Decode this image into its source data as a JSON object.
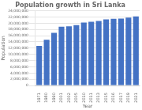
{
  "chart_data": {
    "type": "bar",
    "title": "Population growth in Sri Lanka",
    "xlabel": "Year",
    "ylabel": "Population",
    "categories": [
      "1971",
      "1980",
      "1990",
      "2001",
      "2002",
      "2005",
      "2010",
      "2011",
      "2013",
      "2015",
      "2016",
      "2017",
      "2019",
      "2021"
    ],
    "values": [
      12700000,
      14700000,
      16900000,
      18900000,
      19000000,
      19400000,
      20200000,
      20500000,
      20700000,
      21200000,
      21400000,
      21500000,
      21800000,
      22200000
    ],
    "color": "#4472c4",
    "ylim": [
      0,
      24000000
    ],
    "yticks": [
      0,
      {
        "value": 2000000,
        "label": "2,000,000"
      },
      {
        "value": 4000000,
        "label": "4,000,000"
      },
      {
        "value": 6000000,
        "label": "6,000,000"
      },
      {
        "value": 8000000,
        "label": "8,000,000"
      },
      {
        "value": 10000000,
        "label": "10,000,000"
      },
      {
        "value": 12000000,
        "label": "12,000,000"
      },
      {
        "value": 14000000,
        "label": "14,000,000"
      },
      {
        "value": 16000000,
        "label": "16,000,000"
      },
      {
        "value": 18000000,
        "label": "18,000,000"
      },
      {
        "value": 20000000,
        "label": "20,000,000"
      },
      {
        "value": 22000000,
        "label": "22,000,000"
      },
      {
        "value": 24000000,
        "label": "24,000,000"
      }
    ],
    "grid": true
  }
}
